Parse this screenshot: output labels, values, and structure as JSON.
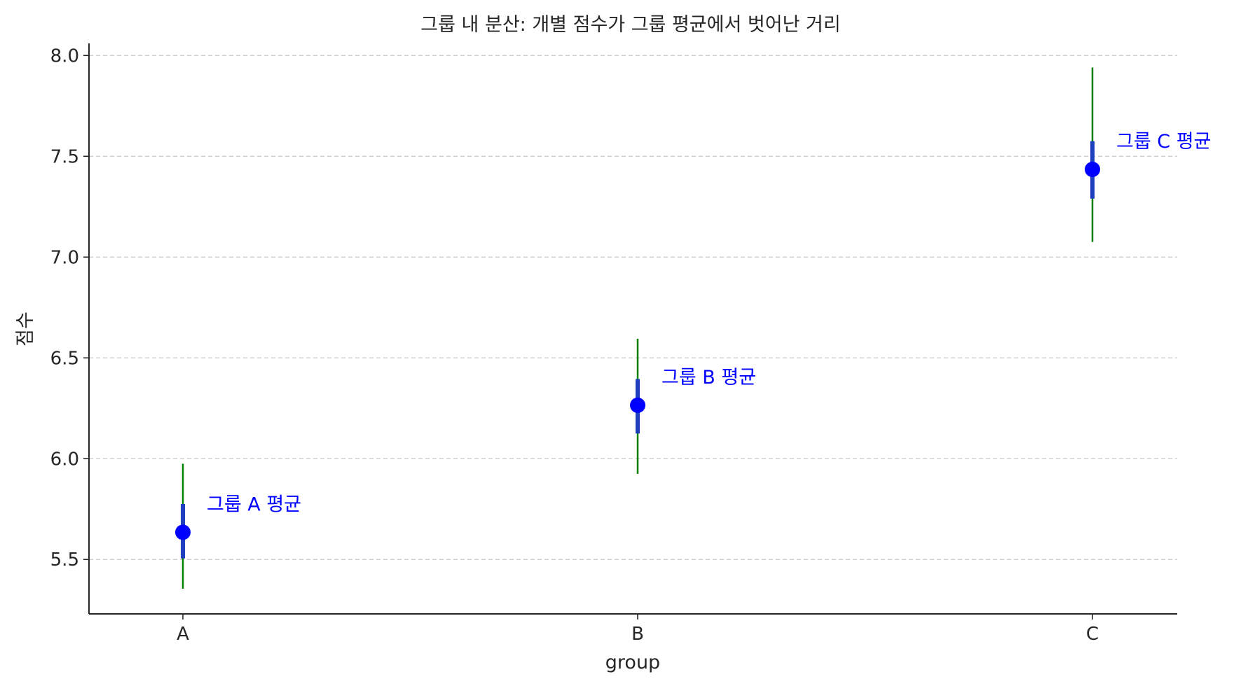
{
  "chart_data": {
    "type": "scatter",
    "title": "그룹 내 분산: 개별 점수가 그룹 평균에서 벗어난 거리",
    "xlabel": "group",
    "ylabel": "점수",
    "categories": [
      "A",
      "B",
      "C"
    ],
    "ylim": [
      5.23,
      8.06
    ],
    "yticks": [
      5.5,
      6.0,
      6.5,
      7.0,
      7.5,
      8.0
    ],
    "ytick_labels": [
      "5.5",
      "6.0",
      "6.5",
      "7.0",
      "7.5",
      "8.0"
    ],
    "grid": "y-dashed",
    "series": [
      {
        "means": [
          5.635,
          6.265,
          7.435
        ],
        "inner_range": [
          [
            5.505,
            5.775
          ],
          [
            6.125,
            6.395
          ],
          [
            7.29,
            7.575
          ]
        ],
        "outer_range": [
          [
            5.355,
            5.975
          ],
          [
            5.925,
            6.595
          ],
          [
            7.075,
            7.94
          ]
        ]
      }
    ],
    "annotations": [
      "그룹 A 평균",
      "그룹 B 평균",
      "그룹 C 평균"
    ],
    "colors": {
      "mean_marker": "#0000ff",
      "inner_bar": "#1f3fbf",
      "outer_line": "#008000",
      "annotation": "#0000ff",
      "grid": "#c8c8c8",
      "axis": "#262626"
    }
  }
}
